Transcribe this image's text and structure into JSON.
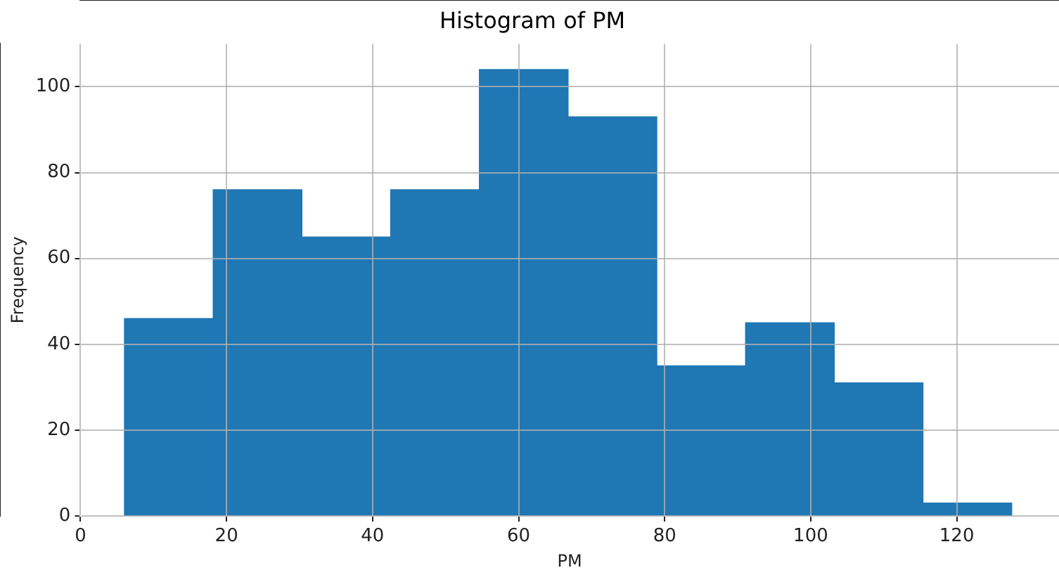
{
  "chart_data": {
    "type": "histogram",
    "title": "Histogram of PM",
    "xlabel": "PM",
    "ylabel": "Frequency",
    "bins": [
      6,
      18.2,
      30.3,
      42.5,
      54.6,
      66.8,
      78.9,
      91.1,
      103.2,
      115.4,
      127.5
    ],
    "values": [
      46,
      76,
      65,
      76,
      104,
      93,
      35,
      45,
      31,
      3
    ],
    "color": "#1f77b4",
    "xlim": [
      0,
      134
    ],
    "xticks": [
      0,
      20,
      40,
      60,
      80,
      100,
      120
    ],
    "ylim": [
      0,
      110
    ],
    "yticks": [
      0,
      20,
      40,
      60,
      80,
      100
    ],
    "grid": true,
    "legend": false
  }
}
